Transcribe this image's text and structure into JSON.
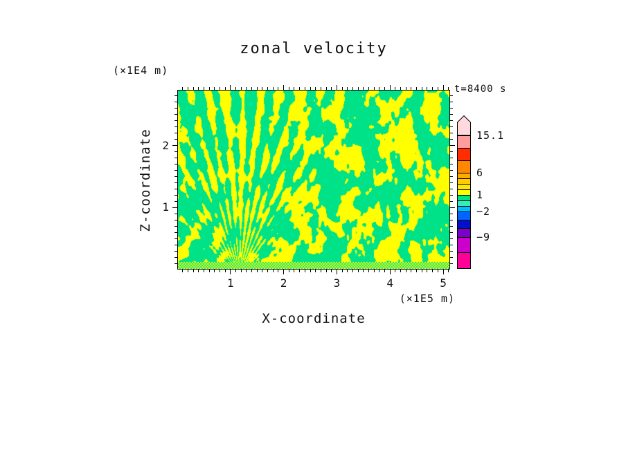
{
  "title": "zonal velocity",
  "time_label": "t=8400 s",
  "axes": {
    "x_label": "X-coordinate",
    "x_unit_label": "(×1E5 m)",
    "y_label": "Z-coordinate",
    "y_unit_label": "(×1E4 m)",
    "x_tick_labels": [
      "1",
      "2",
      "3",
      "4",
      "5"
    ],
    "y_tick_labels": [
      "1",
      "2"
    ]
  },
  "colorbar": {
    "tick_labels": [
      "15.1",
      "6",
      "1",
      "−2",
      "−9"
    ],
    "arrow_color": "#ffd9de",
    "segments_top_to_bottom": [
      {
        "color": "#ff9d9d",
        "height": 18
      },
      {
        "color": "#ff2d00",
        "height": 18
      },
      {
        "color": "#ff8800",
        "height": 18
      },
      {
        "color": "#ffaa00",
        "height": 8
      },
      {
        "color": "#ffcc00",
        "height": 8
      },
      {
        "color": "#ffe800",
        "height": 8
      },
      {
        "color": "#ffff00",
        "height": 8
      },
      {
        "color": "#00e287",
        "height": 8
      },
      {
        "color": "#33eebb",
        "height": 8
      },
      {
        "color": "#00bbff",
        "height": 8
      },
      {
        "color": "#0066ff",
        "height": 12
      },
      {
        "color": "#0011cc",
        "height": 12
      },
      {
        "color": "#7a00cc",
        "height": 13
      },
      {
        "color": "#cc00cc",
        "height": 22
      },
      {
        "color": "#ff0099",
        "height": 23
      }
    ]
  },
  "chart_data": {
    "type": "heatmap",
    "title": "zonal velocity",
    "xlabel": "X-coordinate (×1E5 m)",
    "ylabel": "Z-coordinate (×1E4 m)",
    "time_annotation": "t=8400 s",
    "x_range": [
      0,
      5.13
    ],
    "y_range": [
      0,
      2.9
    ],
    "x_tick_values": [
      1,
      2,
      3,
      4,
      5
    ],
    "y_tick_values": [
      1,
      2
    ],
    "colorbar_tick_values": [
      15.1,
      6,
      1,
      -2,
      -9
    ],
    "legend_position": "right colorbar with arrow overflow at top",
    "grid": false,
    "field": {
      "upper_band_color": "#ffff00",
      "lower_band_color": "#00e287",
      "summary": "Turbulent gravity-wave field filling the panel: interleaved irregular patches of green (velocity band just below contour level 1) and yellow (band just above level 1), with vertically elongated filaments, a narrow fan of fine rays rising from the bottom near x≈1.15×1E5 m, and a thin band of very fine small-scale green/yellow oscillations along the bottom boundary."
    }
  }
}
